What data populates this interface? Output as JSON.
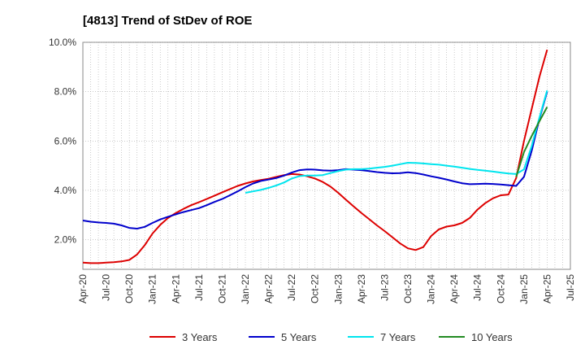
{
  "chart_data": {
    "type": "line",
    "title": "[4813]  Trend of StDev of ROE",
    "xlabel": "",
    "ylabel": "",
    "x_ticks": [
      "Apr-20",
      "Jul-20",
      "Oct-20",
      "Jan-21",
      "Apr-21",
      "Jul-21",
      "Oct-21",
      "Jan-22",
      "Apr-22",
      "Jul-22",
      "Oct-22",
      "Jan-23",
      "Apr-23",
      "Jul-23",
      "Oct-23",
      "Jan-24",
      "Apr-24",
      "Jul-24",
      "Oct-24",
      "Jan-25",
      "Apr-25",
      "Jul-25"
    ],
    "y_ticks": [
      "2.0%",
      "4.0%",
      "6.0%",
      "8.0%",
      "10.0%"
    ],
    "y_tick_values": [
      2,
      4,
      6,
      8,
      10
    ],
    "ylim": [
      0.8,
      10.0
    ],
    "xlim": [
      "Apr-20",
      "Jul-25"
    ],
    "grid": true,
    "legend_position": "bottom",
    "series": [
      {
        "name": "3 Years",
        "color": "#dd0000",
        "x": [
          "Apr-20",
          "May-20",
          "Jun-20",
          "Jul-20",
          "Aug-20",
          "Sep-20",
          "Oct-20",
          "Nov-20",
          "Dec-20",
          "Jan-21",
          "Feb-21",
          "Mar-21",
          "Apr-21",
          "May-21",
          "Jun-21",
          "Jul-21",
          "Aug-21",
          "Sep-21",
          "Oct-21",
          "Nov-21",
          "Dec-21",
          "Jan-22",
          "Feb-22",
          "Mar-22",
          "Apr-22",
          "May-22",
          "Jun-22",
          "Jul-22",
          "Aug-22",
          "Sep-22",
          "Oct-22",
          "Nov-22",
          "Dec-22",
          "Jan-23",
          "Feb-23",
          "Mar-23",
          "Apr-23",
          "May-23",
          "Jun-23",
          "Jul-23",
          "Aug-23",
          "Sep-23",
          "Oct-23",
          "Nov-23",
          "Dec-23",
          "Jan-24",
          "Feb-24",
          "Mar-24",
          "Apr-24",
          "May-24",
          "Jun-24",
          "Jul-24",
          "Aug-24",
          "Sep-24",
          "Oct-24",
          "Nov-24",
          "Dec-24",
          "Jan-25",
          "Feb-25",
          "Mar-25",
          "Apr-25"
        ],
        "values": [
          1.07,
          1.05,
          1.05,
          1.07,
          1.09,
          1.12,
          1.18,
          1.4,
          1.78,
          2.25,
          2.6,
          2.88,
          3.08,
          3.25,
          3.4,
          3.52,
          3.65,
          3.78,
          3.92,
          4.05,
          4.18,
          4.28,
          4.36,
          4.42,
          4.47,
          4.55,
          4.62,
          4.66,
          4.64,
          4.57,
          4.48,
          4.34,
          4.15,
          3.9,
          3.62,
          3.35,
          3.08,
          2.83,
          2.58,
          2.35,
          2.1,
          1.85,
          1.65,
          1.58,
          1.7,
          2.15,
          2.42,
          2.53,
          2.58,
          2.68,
          2.88,
          3.22,
          3.48,
          3.68,
          3.8,
          3.83,
          4.5,
          6.0,
          7.3,
          8.6,
          9.7
        ]
      },
      {
        "name": "5 Years",
        "color": "#0000cc",
        "x": [
          "Apr-20",
          "May-20",
          "Jun-20",
          "Jul-20",
          "Aug-20",
          "Sep-20",
          "Oct-20",
          "Nov-20",
          "Dec-20",
          "Jan-21",
          "Feb-21",
          "Mar-21",
          "Apr-21",
          "May-21",
          "Jun-21",
          "Jul-21",
          "Aug-21",
          "Sep-21",
          "Oct-21",
          "Nov-21",
          "Dec-21",
          "Jan-22",
          "Feb-22",
          "Mar-22",
          "Apr-22",
          "May-22",
          "Jun-22",
          "Jul-22",
          "Aug-22",
          "Sep-22",
          "Oct-22",
          "Nov-22",
          "Dec-22",
          "Jan-23",
          "Feb-23",
          "Mar-23",
          "Apr-23",
          "May-23",
          "Jun-23",
          "Jul-23",
          "Aug-23",
          "Sep-23",
          "Oct-23",
          "Nov-23",
          "Dec-23",
          "Jan-24",
          "Feb-24",
          "Mar-24",
          "Apr-24",
          "May-24",
          "Jun-24",
          "Jul-24",
          "Aug-24",
          "Sep-24",
          "Oct-24",
          "Nov-24",
          "Dec-24",
          "Jan-25",
          "Feb-25",
          "Mar-25",
          "Apr-25"
        ],
        "values": [
          2.78,
          2.73,
          2.7,
          2.68,
          2.65,
          2.58,
          2.48,
          2.45,
          2.52,
          2.68,
          2.82,
          2.93,
          3.03,
          3.12,
          3.2,
          3.28,
          3.4,
          3.53,
          3.65,
          3.8,
          3.96,
          4.13,
          4.28,
          4.38,
          4.44,
          4.5,
          4.6,
          4.72,
          4.82,
          4.85,
          4.84,
          4.81,
          4.8,
          4.82,
          4.86,
          4.84,
          4.82,
          4.78,
          4.74,
          4.71,
          4.69,
          4.7,
          4.73,
          4.7,
          4.64,
          4.57,
          4.51,
          4.44,
          4.36,
          4.29,
          4.25,
          4.26,
          4.27,
          4.26,
          4.24,
          4.21,
          4.18,
          4.55,
          5.6,
          6.9,
          8.0
        ]
      },
      {
        "name": "7 Years",
        "color": "#00e5ee",
        "x": [
          "Jan-22",
          "Feb-22",
          "Mar-22",
          "Apr-22",
          "May-22",
          "Jun-22",
          "Jul-22",
          "Aug-22",
          "Sep-22",
          "Oct-22",
          "Nov-22",
          "Dec-22",
          "Jan-23",
          "Feb-23",
          "Mar-23",
          "Apr-23",
          "May-23",
          "Jun-23",
          "Jul-23",
          "Aug-23",
          "Sep-23",
          "Oct-23",
          "Nov-23",
          "Dec-23",
          "Jan-24",
          "Feb-24",
          "Mar-24",
          "Apr-24",
          "May-24",
          "Jun-24",
          "Jul-24",
          "Aug-24",
          "Sep-24",
          "Oct-24",
          "Nov-24",
          "Dec-24",
          "Jan-25",
          "Feb-25",
          "Mar-25",
          "Apr-25"
        ],
        "values": [
          3.9,
          3.96,
          4.02,
          4.1,
          4.2,
          4.32,
          4.48,
          4.58,
          4.6,
          4.6,
          4.62,
          4.7,
          4.78,
          4.84,
          4.86,
          4.86,
          4.88,
          4.92,
          4.95,
          5.0,
          5.06,
          5.12,
          5.11,
          5.09,
          5.06,
          5.04,
          5.0,
          4.96,
          4.92,
          4.87,
          4.83,
          4.8,
          4.76,
          4.72,
          4.68,
          4.66,
          4.85,
          5.8,
          6.95,
          8.05
        ]
      },
      {
        "name": "10 Years",
        "color": "#228b22",
        "x": [
          "Dec-24",
          "Jan-25",
          "Feb-25",
          "Mar-25",
          "Apr-25"
        ],
        "values": [
          4.55,
          5.55,
          6.2,
          6.8,
          7.38
        ]
      }
    ]
  }
}
